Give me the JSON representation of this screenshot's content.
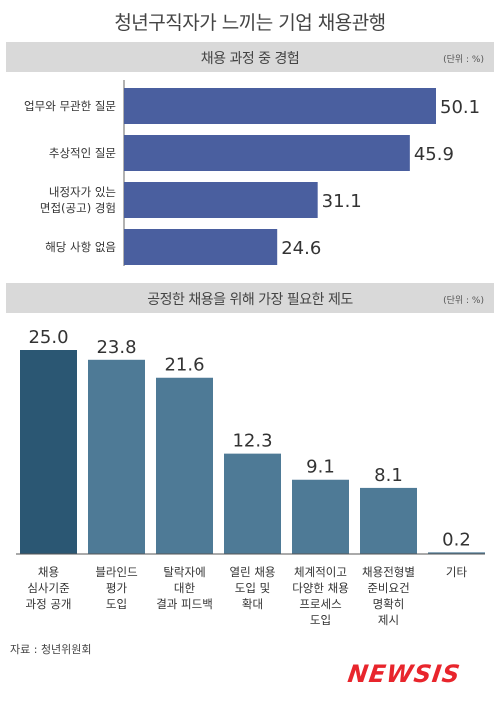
{
  "title": "청년구직자가 느끼는 기업 채용관행",
  "chart_data": [
    {
      "type": "bar",
      "orientation": "horizontal",
      "title": "채용 과정 중 경험",
      "unit": "(단위 : %)",
      "categories": [
        [
          "업무와 무관한 질문"
        ],
        [
          "추상적인 질문"
        ],
        [
          "내정자가 있는",
          "면접(공고) 경험"
        ],
        [
          "해당 사항 없음"
        ]
      ],
      "values": [
        50.1,
        45.9,
        31.1,
        24.6
      ],
      "xlim": [
        0,
        50.1
      ],
      "colors": {
        "bar": "#4a5f9f"
      },
      "grid": false
    },
    {
      "type": "bar",
      "orientation": "vertical",
      "title": "공정한 채용을 위해 가장 필요한 제도",
      "unit": "(단위 : %)",
      "categories": [
        [
          "채용",
          "심사기준",
          "과정 공개"
        ],
        [
          "블라인드",
          "평가",
          "도입"
        ],
        [
          "탈락자에",
          "대한",
          "결과 피드백"
        ],
        [
          "열린 채용",
          "도입 및",
          "확대"
        ],
        [
          "체계적이고",
          "다양한 채용",
          "프로세스",
          "도입"
        ],
        [
          "채용전형별",
          "준비요건",
          "명확히",
          "제시"
        ],
        [
          "기타"
        ]
      ],
      "values": [
        25.0,
        23.8,
        21.6,
        12.3,
        9.1,
        8.1,
        0.2
      ],
      "value_labels": [
        "25.0",
        "23.8",
        "21.6",
        "12.3",
        "9.1",
        "8.1",
        "0.2"
      ],
      "ylim": [
        0,
        25.0
      ],
      "colors": {
        "first_bar": "#2b5773",
        "bar": "#4e7a96"
      },
      "grid": false
    }
  ],
  "source": "자료 : 청년위원회",
  "logo": "NEWSIS"
}
